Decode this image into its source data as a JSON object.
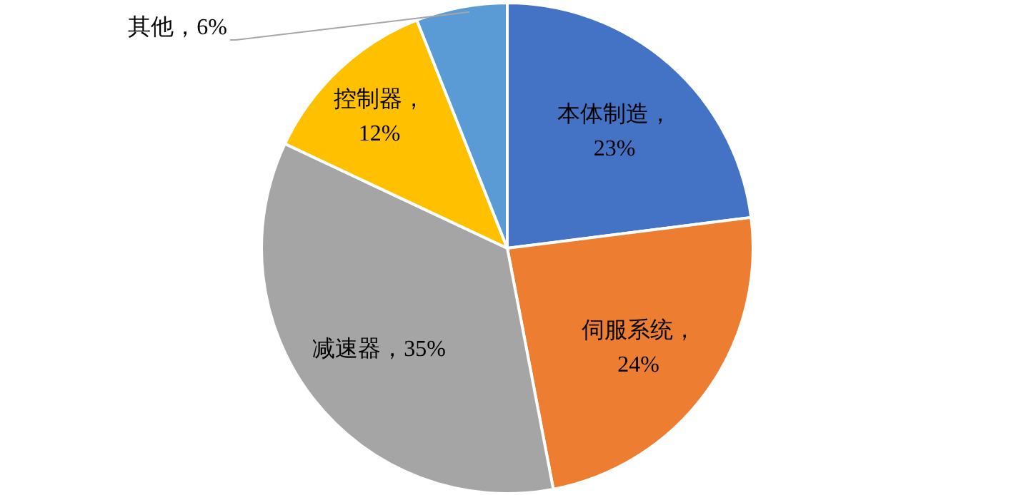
{
  "chart_data": {
    "type": "pie",
    "categories": [
      "本体制造",
      "伺服系统",
      "减速器",
      "控制器",
      "其他"
    ],
    "values": [
      23,
      24,
      35,
      12,
      6
    ],
    "colors": [
      "#4472c4",
      "#ed7d31",
      "#a5a5a5",
      "#ffc000",
      "#5b9bd5"
    ],
    "value_labels": [
      "，23%",
      "，24%",
      "，35%",
      "，12%",
      "，6%"
    ]
  }
}
